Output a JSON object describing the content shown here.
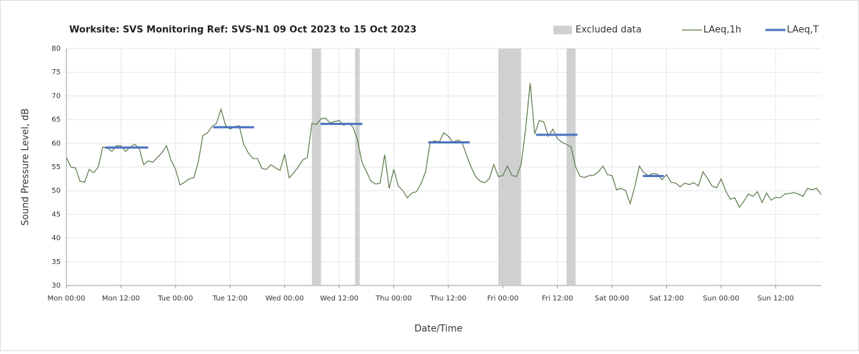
{
  "chart_data": {
    "type": "line",
    "title": "Worksite: SVS   Monitoring Ref: SVS-N1    09 Oct 2023 to 15 Oct 2023",
    "x_label": "Date/Time",
    "y_label": "Sound Pressure Level, dB",
    "xlim": [
      0,
      166
    ],
    "xticks": [
      {
        "value": 0,
        "label": "Mon 00:00"
      },
      {
        "value": 12,
        "label": "Mon 12:00"
      },
      {
        "value": 24,
        "label": "Tue 00:00"
      },
      {
        "value": 36,
        "label": "Tue 12:00"
      },
      {
        "value": 48,
        "label": "Wed 00:00"
      },
      {
        "value": 60,
        "label": "Wed 12:00"
      },
      {
        "value": 72,
        "label": "Thu 00:00"
      },
      {
        "value": 84,
        "label": "Thu 12:00"
      },
      {
        "value": 96,
        "label": "Fri 00:00"
      },
      {
        "value": 108,
        "label": "Fri 12:00"
      },
      {
        "value": 120,
        "label": "Sat 00:00"
      },
      {
        "value": 132,
        "label": "Sat 12:00"
      },
      {
        "value": 144,
        "label": "Sun 00:00"
      },
      {
        "value": 156,
        "label": "Sun 12:00"
      }
    ],
    "ylim": [
      30,
      80
    ],
    "yticks": [
      30,
      35,
      40,
      45,
      50,
      55,
      60,
      65,
      70,
      75,
      80
    ],
    "grid": true,
    "legend": "top-right",
    "excluded": {
      "name": "Excluded data",
      "color": "#d0d0d0",
      "ranges": [
        [
          54,
          56
        ],
        [
          63.5,
          64.5
        ],
        [
          95,
          100
        ],
        [
          110,
          112
        ]
      ]
    },
    "x": [
      0,
      1,
      2,
      3,
      4,
      5,
      6,
      7,
      8,
      9,
      10,
      11,
      12,
      13,
      14,
      15,
      16,
      17,
      18,
      19,
      20,
      21,
      22,
      23,
      24,
      25,
      26,
      27,
      28,
      29,
      30,
      31,
      32,
      33,
      34,
      35,
      36,
      37,
      38,
      39,
      40,
      41,
      42,
      43,
      44,
      45,
      46,
      47,
      48,
      49,
      50,
      51,
      52,
      53,
      54,
      55,
      56,
      57,
      58,
      59,
      60,
      61,
      62,
      63,
      64,
      65,
      66,
      67,
      68,
      69,
      70,
      71,
      72,
      73,
      74,
      75,
      76,
      77,
      78,
      79,
      80,
      81,
      82,
      83,
      84,
      85,
      86,
      87,
      88,
      89,
      90,
      91,
      92,
      93,
      94,
      95,
      96,
      97,
      98,
      99,
      100,
      101,
      102,
      103,
      104,
      105,
      106,
      107,
      108,
      109,
      110,
      111,
      112,
      113,
      114,
      115,
      116,
      117,
      118,
      119,
      120,
      121,
      122,
      123,
      124,
      125,
      126,
      127,
      128,
      129,
      130,
      131,
      132,
      133,
      134,
      135,
      136,
      137,
      138,
      139,
      140,
      141,
      142,
      143,
      144,
      145,
      146,
      147,
      148,
      149,
      150,
      151,
      152,
      153,
      154,
      155,
      156,
      157,
      158,
      159,
      160,
      161,
      162,
      163,
      164,
      165,
      166
    ],
    "series": [
      {
        "name": "LAeq,1h",
        "color": "#5a7a4a",
        "values": [
          57,
          55,
          54.8,
          52,
          51.8,
          54.5,
          53.8,
          55,
          59.2,
          59,
          58.3,
          59.5,
          59.5,
          58.3,
          59.2,
          59.8,
          59,
          55.5,
          56.3,
          56,
          57,
          58,
          59.5,
          56.5,
          54.5,
          51.2,
          51.8,
          52.5,
          52.7,
          56,
          61.6,
          62.2,
          63.5,
          64.2,
          67.2,
          63.8,
          63,
          63.5,
          63.7,
          59.8,
          58,
          56.8,
          56.8,
          54.7,
          54.5,
          55.5,
          54.8,
          54.3,
          57.7,
          52.7,
          53.8,
          55,
          56.5,
          57,
          64.2,
          64,
          65.2,
          65.3,
          64.3,
          64.6,
          64.8,
          63.8,
          64.3,
          63.5,
          60.8,
          56,
          54,
          52,
          51.4,
          51.6,
          57.6,
          50.5,
          54.5,
          51,
          50,
          48.5,
          49.5,
          49.8,
          51.5,
          54,
          60.2,
          60.5,
          60.3,
          62.2,
          61.5,
          60.2,
          60.7,
          60.3,
          57.5,
          55,
          53,
          52,
          51.7,
          52.5,
          55.5,
          53,
          53.2,
          55.2,
          53.2,
          53,
          55.5,
          63,
          72.7,
          62,
          64.8,
          64.5,
          61.5,
          63,
          61,
          60.2,
          59.8,
          59.2,
          55,
          53,
          52.8,
          53.2,
          53.3,
          54,
          55.2,
          53.4,
          53.2,
          50.2,
          50.5,
          50,
          47.3,
          50.8,
          55.2,
          53.8,
          53.2,
          53.6,
          53.5,
          52.3,
          53.4,
          51.8,
          51.6,
          50.8,
          51.6,
          51.3,
          51.7,
          51,
          54,
          52.6,
          51,
          50.6,
          52.5,
          50,
          48.2,
          48.5,
          46.5,
          47.8,
          49.3,
          48.8,
          49.8,
          47.5,
          49.5,
          48,
          48.6,
          48.5,
          49.3,
          49.4,
          49.6,
          49.3,
          48.8,
          50.5,
          50.2,
          50.5,
          49.2
        ]
      },
      {
        "name": "LAeq,T",
        "color": "#4a72c0",
        "segments": [
          {
            "start": 8.5,
            "end": 18,
            "value": 59.1
          },
          {
            "start": 32.3,
            "end": 41.3,
            "value": 63.4
          },
          {
            "start": 55.9,
            "end": 65.1,
            "value": 64.1
          },
          {
            "start": 79.6,
            "end": 88.7,
            "value": 60.2
          },
          {
            "start": 103.3,
            "end": 112.4,
            "value": 61.8
          },
          {
            "start": 126.8,
            "end": 131.4,
            "value": 53.1
          }
        ]
      }
    ]
  }
}
